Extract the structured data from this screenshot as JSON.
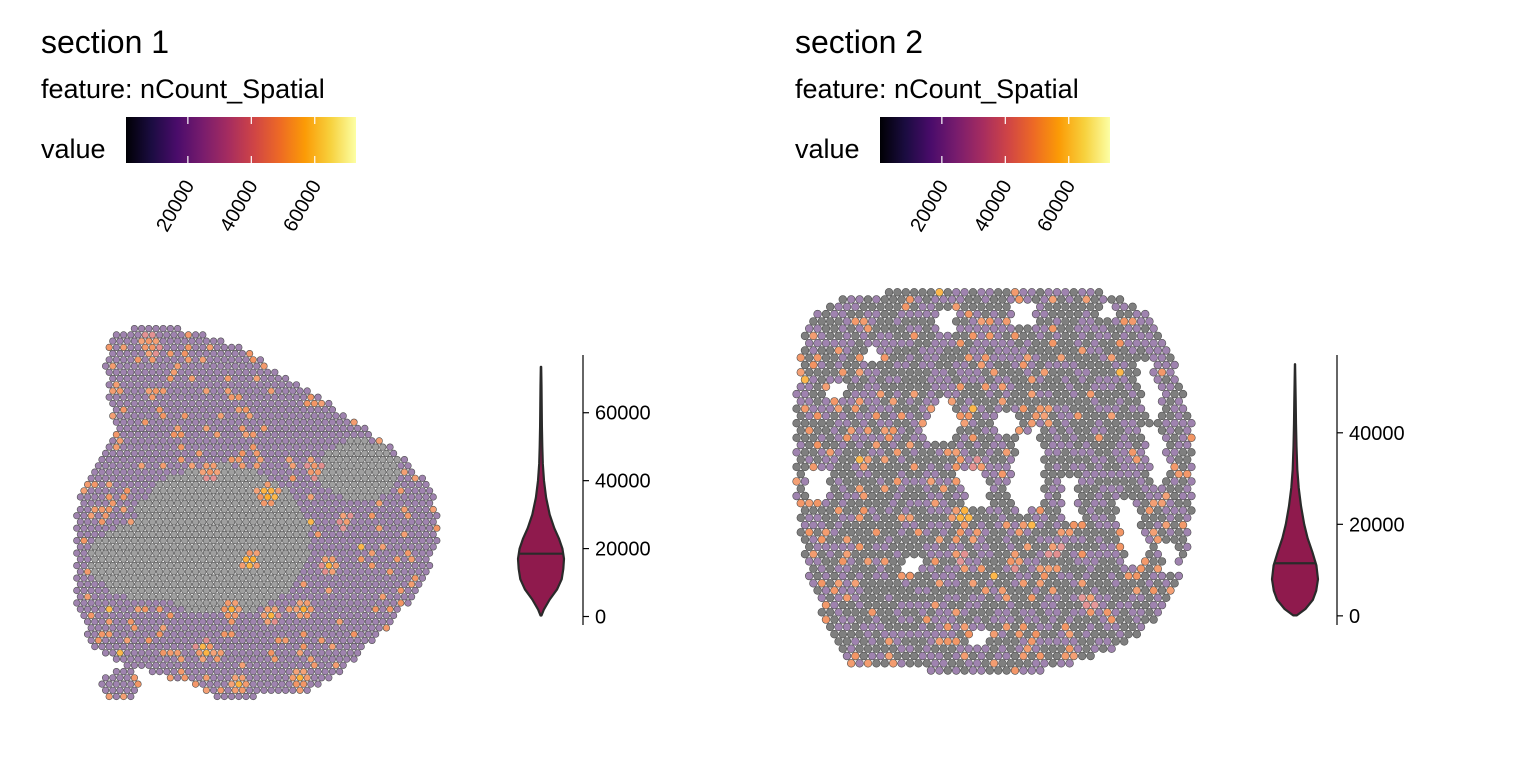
{
  "colors": {
    "inferno": [
      "#000004",
      "#1b0c41",
      "#4a0c6b",
      "#781c6d",
      "#a52c60",
      "#cf4446",
      "#ed6925",
      "#fb9b06",
      "#f7d13d",
      "#fcffa4"
    ],
    "spot_na": "#7f7f7f",
    "spot_overlay": "#9575a6",
    "spot_stroke": "#4d4d4d",
    "violin_fill": "#8f1a4d",
    "violin_stroke": "#2a2a2a"
  },
  "chart_data": [
    {
      "type": "spatial-feature-with-violin",
      "title": "section 1",
      "subtitle": "feature:  nCount_Spatial",
      "legend": {
        "title": "value",
        "ticks": [
          20000,
          40000,
          60000
        ],
        "tick_labels": [
          "20000",
          "40000",
          "60000"
        ],
        "range": [
          500,
          73000
        ],
        "colormap": "inferno",
        "placement": "top-left"
      },
      "violin": {
        "axis_ticks": [
          0,
          20000,
          40000,
          60000
        ],
        "axis_tick_labels": [
          "0",
          "20000",
          "40000",
          "60000"
        ],
        "ylim": [
          -2500,
          77000
        ],
        "min": 300,
        "max": 73500,
        "median": 18500,
        "density": [
          [
            300,
            0.02
          ],
          [
            2000,
            0.12
          ],
          [
            5000,
            0.38
          ],
          [
            8000,
            0.7
          ],
          [
            11000,
            0.9
          ],
          [
            14000,
            0.97
          ],
          [
            17000,
            1.0
          ],
          [
            20000,
            0.93
          ],
          [
            23000,
            0.78
          ],
          [
            26000,
            0.58
          ],
          [
            30000,
            0.38
          ],
          [
            35000,
            0.22
          ],
          [
            40000,
            0.13
          ],
          [
            45000,
            0.08
          ],
          [
            50000,
            0.055
          ],
          [
            56000,
            0.04
          ],
          [
            62000,
            0.03
          ],
          [
            68000,
            0.02
          ],
          [
            73500,
            0.008
          ]
        ]
      }
    },
    {
      "type": "spatial-feature-with-violin",
      "title": "section 2",
      "subtitle": "feature:  nCount_Spatial",
      "legend": {
        "title": "value",
        "ticks": [
          20000,
          40000,
          60000
        ],
        "tick_labels": [
          "20000",
          "40000",
          "60000"
        ],
        "range": [
          500,
          73000
        ],
        "colormap": "inferno",
        "placement": "top-left"
      },
      "violin": {
        "axis_ticks": [
          0,
          20000,
          40000
        ],
        "axis_tick_labels": [
          "0",
          "20000",
          "40000"
        ],
        "ylim": [
          -2000,
          57000
        ],
        "min": 100,
        "max": 55000,
        "median": 11500,
        "density": [
          [
            100,
            0.08
          ],
          [
            1500,
            0.45
          ],
          [
            3500,
            0.78
          ],
          [
            5500,
            0.92
          ],
          [
            8000,
            1.0
          ],
          [
            11000,
            0.93
          ],
          [
            14000,
            0.75
          ],
          [
            17000,
            0.55
          ],
          [
            20000,
            0.4
          ],
          [
            24000,
            0.26
          ],
          [
            28000,
            0.16
          ],
          [
            32000,
            0.1
          ],
          [
            37000,
            0.065
          ],
          [
            42000,
            0.045
          ],
          [
            47000,
            0.03
          ],
          [
            51000,
            0.018
          ],
          [
            55000,
            0.006
          ]
        ]
      }
    }
  ]
}
